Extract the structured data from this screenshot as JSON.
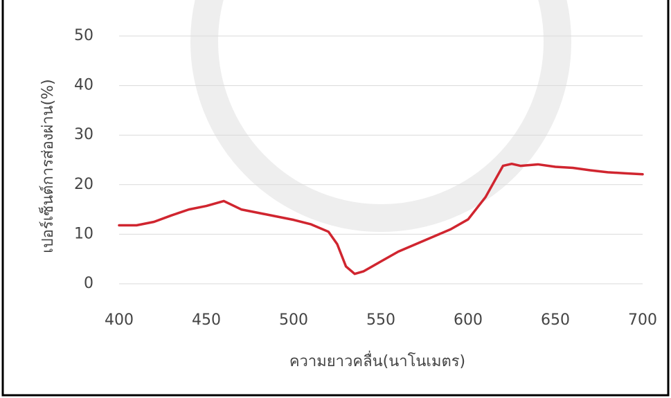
{
  "chart_data": {
    "type": "line",
    "x_label": "ความยาวคลื่น(นาโนเมตร)",
    "y_label": "เปอร์เซ็นต์การส่องผ่าน(%)",
    "x": [
      400,
      410,
      420,
      430,
      440,
      450,
      460,
      470,
      480,
      490,
      500,
      510,
      520,
      525,
      530,
      535,
      540,
      550,
      560,
      570,
      580,
      590,
      600,
      610,
      620,
      625,
      630,
      640,
      650,
      660,
      670,
      680,
      690,
      700
    ],
    "series": [
      {
        "color": "#d0252f",
        "values": [
          11.8,
          11.8,
          12.5,
          13.8,
          15.0,
          15.7,
          16.7,
          15.0,
          14.3,
          13.6,
          12.9,
          12.0,
          10.5,
          8.0,
          3.5,
          2.0,
          2.5,
          4.5,
          6.5,
          8.0,
          9.5,
          11.0,
          13.0,
          17.5,
          23.8,
          24.2,
          23.8,
          24.1,
          23.6,
          23.4,
          22.9,
          22.5,
          22.3,
          22.1
        ]
      }
    ],
    "xlim": [
      400,
      700
    ],
    "xticks": [
      400,
      450,
      500,
      550,
      600,
      650,
      700
    ],
    "ylim": [
      0,
      50
    ],
    "yticks": [
      0,
      10,
      20,
      30,
      40,
      50
    ],
    "grid": true
  }
}
